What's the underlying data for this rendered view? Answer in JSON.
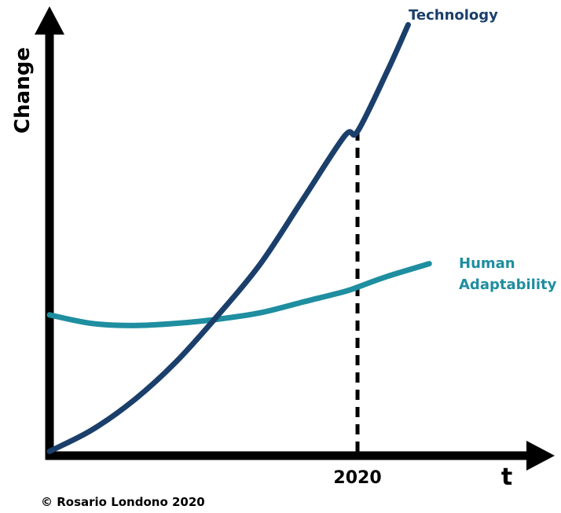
{
  "chart_data": {
    "type": "line",
    "title": "",
    "xlabel": "t",
    "ylabel": "Change",
    "xlim": [
      0,
      10
    ],
    "ylim": [
      0,
      10
    ],
    "grid": false,
    "ticks": {
      "x": [
        {
          "value": 7.3,
          "label": "2020"
        }
      ]
    },
    "marker_line": {
      "x": 7.3,
      "style": "dashed"
    },
    "series": [
      {
        "name": "Technology",
        "color": "#1b3f6b",
        "x": [
          0,
          1,
          2,
          3,
          4,
          5,
          6,
          7,
          7.3,
          8,
          8.5
        ],
        "y": [
          0.1,
          0.6,
          1.3,
          2.2,
          3.3,
          4.5,
          6.0,
          7.5,
          7.6,
          9.0,
          10.1
        ]
      },
      {
        "name": "Human Adaptability",
        "color": "#1e8ea0",
        "x": [
          0,
          1,
          2,
          3,
          4,
          5,
          6,
          7,
          7.3,
          8,
          9
        ],
        "y": [
          3.3,
          3.1,
          3.05,
          3.1,
          3.2,
          3.35,
          3.6,
          3.85,
          3.95,
          4.2,
          4.5
        ]
      }
    ]
  },
  "footer": {
    "copyright": "© Rosario Londono 2020"
  }
}
